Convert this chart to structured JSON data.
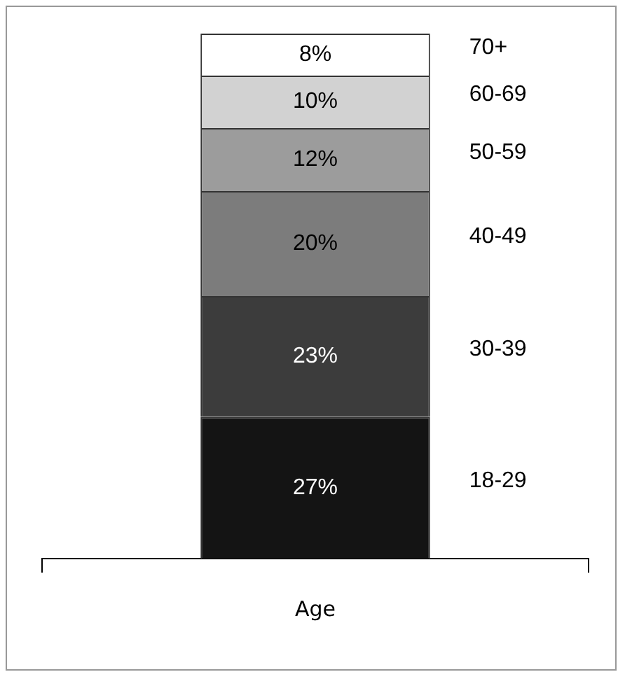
{
  "chart_data": {
    "type": "bar",
    "stacked": true,
    "categories": [
      null
    ],
    "xlabel": "Age",
    "ylim": [
      0,
      100
    ],
    "legend": false,
    "series": [
      {
        "name": "18-29",
        "color": "#141414",
        "values": [
          27
        ],
        "value_labels": [
          "27%"
        ]
      },
      {
        "name": "30-39",
        "color": "#3c3c3c",
        "values": [
          23
        ],
        "value_labels": [
          "23%"
        ]
      },
      {
        "name": "40-49",
        "color": "#7c7c7c",
        "values": [
          20
        ],
        "value_labels": [
          "20%"
        ]
      },
      {
        "name": "50-59",
        "color": "#9c9c9c",
        "values": [
          12
        ],
        "value_labels": [
          "12%"
        ]
      },
      {
        "name": "60-69",
        "color": "#d2d2d2",
        "values": [
          10
        ],
        "value_labels": [
          "10%"
        ]
      },
      {
        "name": "70+",
        "color": "#ffffff",
        "values": [
          8
        ],
        "value_labels": [
          "8%"
        ]
      }
    ]
  }
}
